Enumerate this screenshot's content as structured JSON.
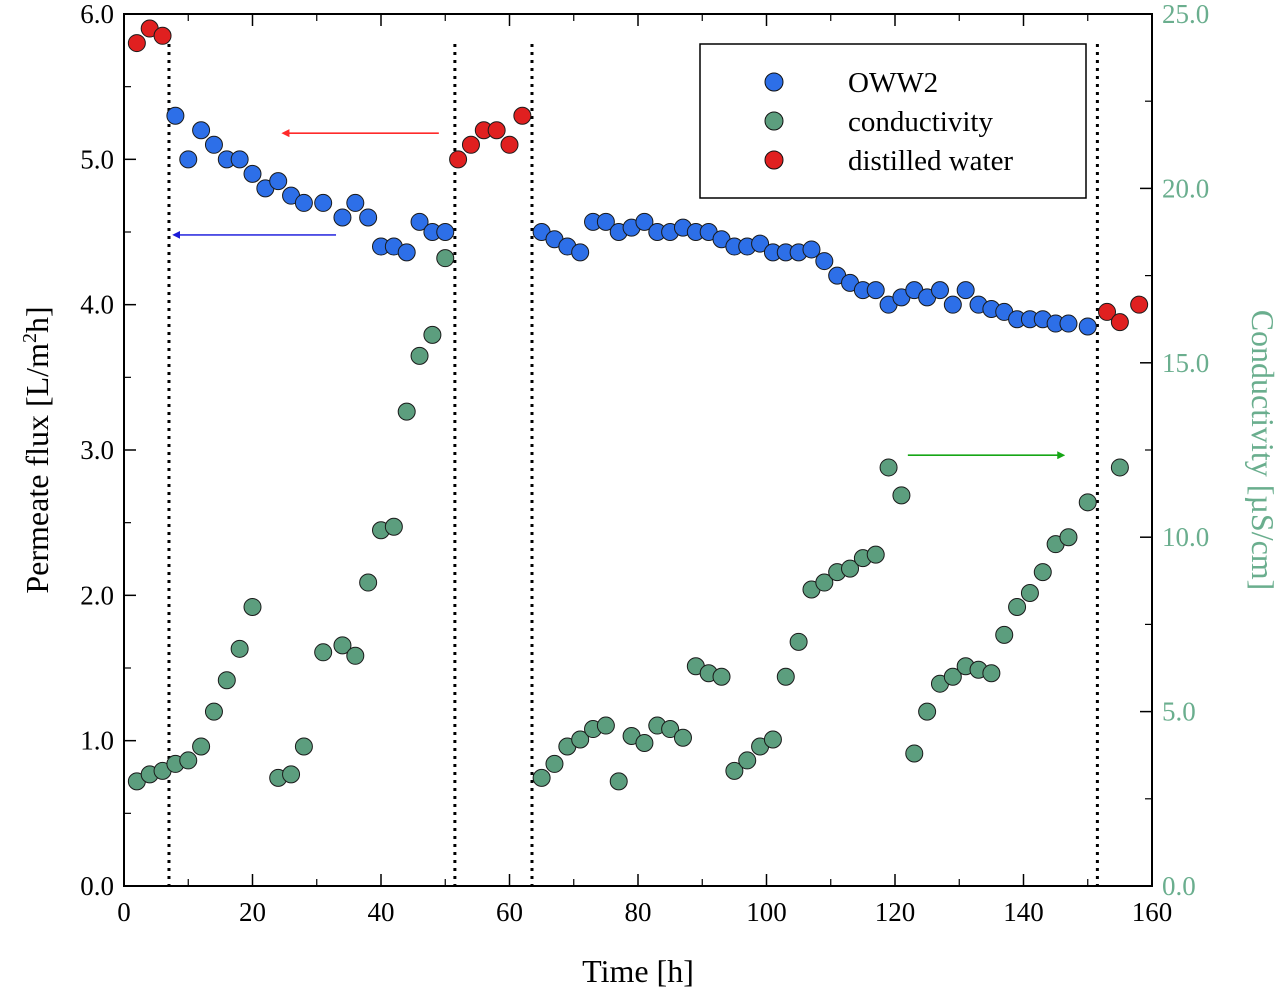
{
  "chart_data": {
    "type": "scatter",
    "xlabel": "Time [h]",
    "ylabel_left": "Permeate flux [L/m²h]",
    "ylabel_right": "Conductivity [µS/cm]",
    "xlim": [
      0,
      160
    ],
    "ylim_left": [
      0,
      6
    ],
    "ylim_right": [
      0,
      25
    ],
    "x_ticks": [
      0,
      20,
      40,
      60,
      80,
      100,
      120,
      140,
      160
    ],
    "x_tick_labels": [
      "0",
      "20",
      "40",
      "60",
      "80",
      "100",
      "120",
      "140",
      "160"
    ],
    "y_left_ticks": [
      0,
      1,
      2,
      3,
      4,
      5,
      6
    ],
    "y_left_tick_labels": [
      "0.0",
      "1.0",
      "2.0",
      "3.0",
      "4.0",
      "5.0",
      "6.0"
    ],
    "y_right_ticks": [
      0,
      5,
      10,
      15,
      20,
      25
    ],
    "y_right_tick_labels": [
      "0.0",
      "5.0",
      "10.0",
      "15.0",
      "20.0",
      "25.0"
    ],
    "vlines_x": [
      7,
      51.5,
      63.5,
      151.5
    ],
    "legend": {
      "position": "top-right",
      "entries": [
        {
          "label": "OWW2",
          "color": "#2d6fe8"
        },
        {
          "label": "conductivity",
          "color": "#5c9e7e"
        },
        {
          "label": "distilled water",
          "color": "#e02020"
        }
      ]
    },
    "arrows": [
      {
        "name": "distilled-water-arrow",
        "color": "#ff2a2a",
        "axis": "left",
        "x_from": 49,
        "x_to": 25.5,
        "y": 5.18
      },
      {
        "name": "oww2-arrow",
        "color": "#3434e0",
        "axis": "left",
        "x_from": 33,
        "x_to": 8.5,
        "y": 4.48
      },
      {
        "name": "conductivity-arrow",
        "color": "#16a616",
        "axis": "right",
        "x_from": 122,
        "x_to": 145.5,
        "y": 12.35
      }
    ],
    "series": [
      {
        "name": "OWW2",
        "axis": "left",
        "color": "#2d6fe8",
        "points": [
          [
            8,
            5.3
          ],
          [
            10,
            5.0
          ],
          [
            12,
            5.2
          ],
          [
            14,
            5.1
          ],
          [
            16,
            5.0
          ],
          [
            18,
            5.0
          ],
          [
            20,
            4.9
          ],
          [
            22,
            4.8
          ],
          [
            24,
            4.85
          ],
          [
            26,
            4.75
          ],
          [
            28,
            4.7
          ],
          [
            31,
            4.7
          ],
          [
            34,
            4.6
          ],
          [
            36,
            4.7
          ],
          [
            38,
            4.6
          ],
          [
            40,
            4.4
          ],
          [
            42,
            4.4
          ],
          [
            44,
            4.36
          ],
          [
            46,
            4.57
          ],
          [
            48,
            4.5
          ],
          [
            50,
            4.5
          ],
          [
            65,
            4.5
          ],
          [
            67,
            4.45
          ],
          [
            69,
            4.4
          ],
          [
            71,
            4.36
          ],
          [
            73,
            4.57
          ],
          [
            75,
            4.57
          ],
          [
            77,
            4.5
          ],
          [
            79,
            4.53
          ],
          [
            81,
            4.57
          ],
          [
            83,
            4.5
          ],
          [
            85,
            4.5
          ],
          [
            87,
            4.53
          ],
          [
            89,
            4.5
          ],
          [
            91,
            4.5
          ],
          [
            93,
            4.45
          ],
          [
            95,
            4.4
          ],
          [
            97,
            4.4
          ],
          [
            99,
            4.42
          ],
          [
            101,
            4.36
          ],
          [
            103,
            4.36
          ],
          [
            105,
            4.36
          ],
          [
            107,
            4.38
          ],
          [
            109,
            4.3
          ],
          [
            111,
            4.2
          ],
          [
            113,
            4.15
          ],
          [
            115,
            4.1
          ],
          [
            117,
            4.1
          ],
          [
            119,
            4.0
          ],
          [
            121,
            4.05
          ],
          [
            123,
            4.1
          ],
          [
            125,
            4.05
          ],
          [
            127,
            4.1
          ],
          [
            129,
            4.0
          ],
          [
            131,
            4.1
          ],
          [
            133,
            4.0
          ],
          [
            135,
            3.97
          ],
          [
            137,
            3.95
          ],
          [
            139,
            3.9
          ],
          [
            141,
            3.9
          ],
          [
            143,
            3.9
          ],
          [
            145,
            3.87
          ],
          [
            147,
            3.87
          ],
          [
            150,
            3.85
          ]
        ]
      },
      {
        "name": "conductivity",
        "axis": "right",
        "color": "#5c9e7e",
        "points": [
          [
            2,
            3.0
          ],
          [
            4,
            3.2
          ],
          [
            6,
            3.3
          ],
          [
            8,
            3.5
          ],
          [
            10,
            3.6
          ],
          [
            12,
            4.0
          ],
          [
            14,
            5.0
          ],
          [
            16,
            5.9
          ],
          [
            18,
            6.8
          ],
          [
            20,
            8.0
          ],
          [
            24,
            3.1
          ],
          [
            26,
            3.2
          ],
          [
            28,
            4.0
          ],
          [
            31,
            6.7
          ],
          [
            34,
            6.9
          ],
          [
            36,
            6.6
          ],
          [
            38,
            8.7
          ],
          [
            40,
            10.2
          ],
          [
            42,
            10.3
          ],
          [
            44,
            13.6
          ],
          [
            46,
            15.2
          ],
          [
            48,
            15.8
          ],
          [
            50,
            18.0
          ],
          [
            65,
            3.1
          ],
          [
            67,
            3.5
          ],
          [
            69,
            4.0
          ],
          [
            71,
            4.2
          ],
          [
            73,
            4.5
          ],
          [
            75,
            4.6
          ],
          [
            77,
            3.0
          ],
          [
            79,
            4.3
          ],
          [
            81,
            4.1
          ],
          [
            83,
            4.6
          ],
          [
            85,
            4.5
          ],
          [
            87,
            4.25
          ],
          [
            89,
            6.3
          ],
          [
            91,
            6.1
          ],
          [
            93,
            6.0
          ],
          [
            95,
            3.3
          ],
          [
            97,
            3.6
          ],
          [
            99,
            4.0
          ],
          [
            101,
            4.2
          ],
          [
            103,
            6.0
          ],
          [
            105,
            7.0
          ],
          [
            107,
            8.5
          ],
          [
            109,
            8.7
          ],
          [
            111,
            9.0
          ],
          [
            113,
            9.1
          ],
          [
            115,
            9.4
          ],
          [
            117,
            9.5
          ],
          [
            119,
            12.0
          ],
          [
            121,
            11.2
          ],
          [
            123,
            3.8
          ],
          [
            125,
            5.0
          ],
          [
            127,
            5.8
          ],
          [
            129,
            6.0
          ],
          [
            131,
            6.3
          ],
          [
            133,
            6.2
          ],
          [
            135,
            6.1
          ],
          [
            137,
            7.2
          ],
          [
            139,
            8.0
          ],
          [
            141,
            8.4
          ],
          [
            143,
            9.0
          ],
          [
            145,
            9.8
          ],
          [
            147,
            10.0
          ],
          [
            150,
            11.0
          ],
          [
            155,
            12.0
          ]
        ]
      },
      {
        "name": "distilled water",
        "axis": "left",
        "color": "#e02020",
        "points": [
          [
            2,
            5.8
          ],
          [
            4,
            5.9
          ],
          [
            6,
            5.85
          ],
          [
            52,
            5.0
          ],
          [
            54,
            5.1
          ],
          [
            56,
            5.2
          ],
          [
            58,
            5.2
          ],
          [
            60,
            5.1
          ],
          [
            62,
            5.3
          ],
          [
            153,
            3.95
          ],
          [
            155,
            3.88
          ],
          [
            158,
            4.0
          ]
        ]
      }
    ]
  }
}
